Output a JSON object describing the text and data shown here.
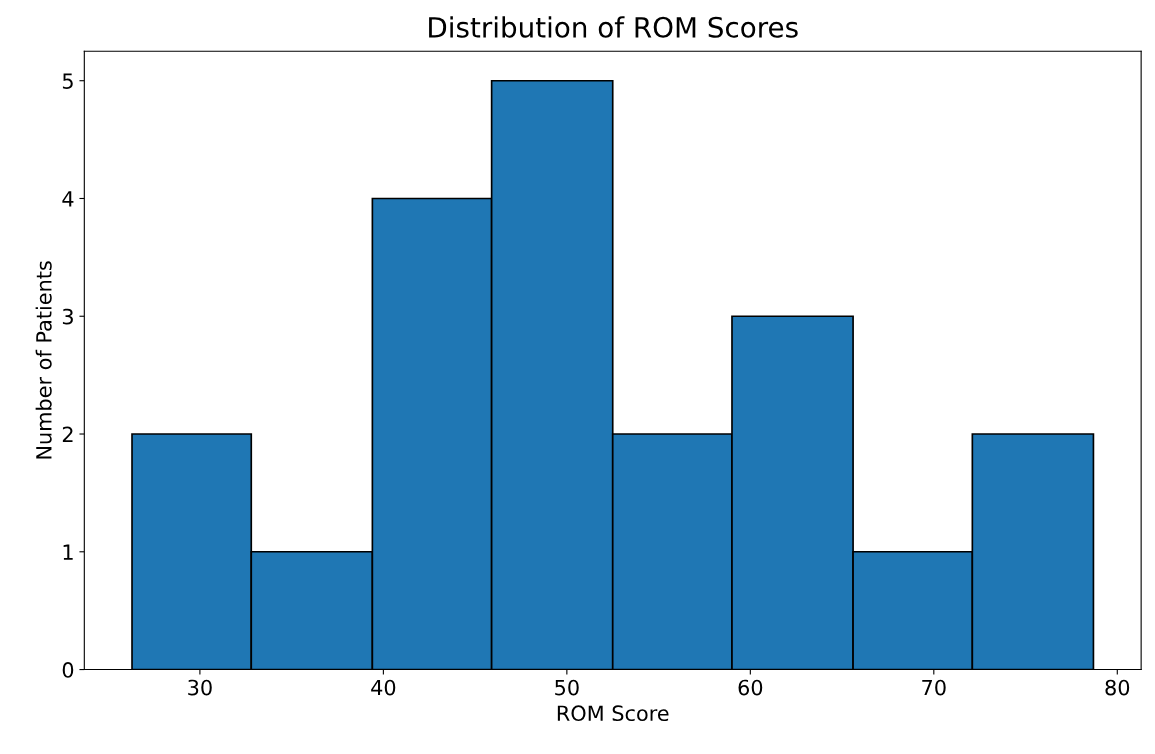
{
  "chart_data": {
    "type": "histogram",
    "title": "Distribution of ROM Scores",
    "xlabel": "ROM Score",
    "ylabel": "Number of Patients",
    "bins": [
      26.3,
      32.8,
      39.4,
      45.9,
      52.5,
      59.0,
      65.6,
      72.1,
      78.7
    ],
    "values": [
      2,
      1,
      4,
      5,
      2,
      3,
      1,
      2
    ],
    "color": "#1f77b4",
    "xlim": [
      23.7,
      81.3
    ],
    "xticks": [
      30,
      40,
      50,
      60,
      70,
      80
    ],
    "ylim": [
      0,
      5.25
    ],
    "yticks": [
      0,
      1,
      2,
      3,
      4,
      5
    ],
    "grid": false
  }
}
